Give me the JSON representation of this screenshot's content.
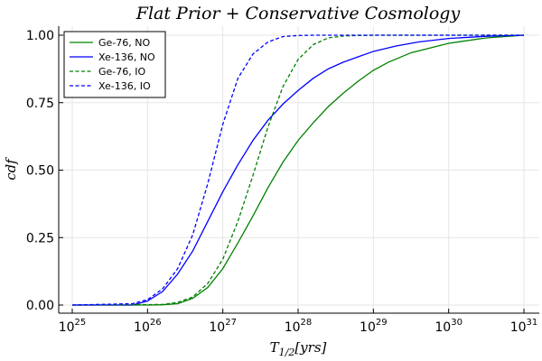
{
  "chart_data": {
    "type": "line",
    "title": "Flat Prior + Conservative Cosmology",
    "xlabel": "T_{1/2}[yrs]",
    "ylabel": "cdf",
    "xscale": "log",
    "xlim_log10": [
      25,
      31
    ],
    "ylim": [
      0,
      1
    ],
    "xticks": [
      {
        "exp": 25,
        "base": "10",
        "sup": "25"
      },
      {
        "exp": 26,
        "base": "10",
        "sup": "26"
      },
      {
        "exp": 27,
        "base": "10",
        "sup": "27"
      },
      {
        "exp": 28,
        "base": "10",
        "sup": "28"
      },
      {
        "exp": 29,
        "base": "10",
        "sup": "29"
      },
      {
        "exp": 30,
        "base": "10",
        "sup": "30"
      },
      {
        "exp": 31,
        "base": "10",
        "sup": "31"
      }
    ],
    "yticks": [
      {
        "value": 0,
        "label": "0.00"
      },
      {
        "value": 0.25,
        "label": "0.25"
      },
      {
        "value": 0.5,
        "label": "0.50"
      },
      {
        "value": 0.75,
        "label": "0.75"
      },
      {
        "value": 1,
        "label": "1.00"
      }
    ],
    "grid": true,
    "legend_position": "top-left",
    "series": [
      {
        "name": "Ge-76, NO",
        "color": "#008000",
        "dash": "solid",
        "log10_x": [
          25,
          26,
          26.2,
          26.4,
          26.6,
          26.8,
          27,
          27.2,
          27.4,
          27.6,
          27.8,
          28,
          28.2,
          28.4,
          28.6,
          28.8,
          29,
          29.2,
          29.5,
          30,
          30.5,
          31
        ],
        "y": [
          0,
          0,
          0.001,
          0.005,
          0.025,
          0.065,
          0.135,
          0.23,
          0.33,
          0.435,
          0.53,
          0.61,
          0.675,
          0.735,
          0.785,
          0.83,
          0.87,
          0.9,
          0.935,
          0.97,
          0.99,
          1.0
        ]
      },
      {
        "name": "Xe-136, NO",
        "color": "#0000ff",
        "dash": "solid",
        "log10_x": [
          25,
          25.8,
          26,
          26.2,
          26.4,
          26.6,
          26.8,
          27,
          27.2,
          27.4,
          27.6,
          27.8,
          28,
          28.2,
          28.4,
          28.6,
          28.8,
          29,
          29.3,
          29.6,
          30,
          30.5,
          31
        ],
        "y": [
          0,
          0,
          0.015,
          0.05,
          0.115,
          0.2,
          0.31,
          0.42,
          0.52,
          0.61,
          0.685,
          0.745,
          0.795,
          0.84,
          0.875,
          0.9,
          0.92,
          0.94,
          0.96,
          0.975,
          0.988,
          0.996,
          1.0
        ]
      },
      {
        "name": "Ge-76, IO",
        "color": "#008000",
        "dash": "dashed",
        "log10_x": [
          25,
          26.2,
          26.4,
          26.6,
          26.8,
          27,
          27.2,
          27.4,
          27.6,
          27.8,
          28,
          28.2,
          28.4,
          28.6,
          28.8,
          29,
          31
        ],
        "y": [
          0,
          0.002,
          0.01,
          0.03,
          0.08,
          0.17,
          0.31,
          0.48,
          0.66,
          0.81,
          0.91,
          0.965,
          0.99,
          0.997,
          0.999,
          1.0,
          1.0
        ]
      },
      {
        "name": "Xe-136, IO",
        "color": "#0000ff",
        "dash": "dashed",
        "log10_x": [
          25,
          25.8,
          26,
          26.2,
          26.4,
          26.6,
          26.8,
          27,
          27.2,
          27.4,
          27.6,
          27.8,
          28,
          28.2,
          28.4,
          31
        ],
        "y": [
          0,
          0.005,
          0.02,
          0.06,
          0.135,
          0.26,
          0.45,
          0.67,
          0.84,
          0.93,
          0.975,
          0.995,
          0.999,
          1.0,
          1.0,
          1.0
        ]
      }
    ]
  }
}
